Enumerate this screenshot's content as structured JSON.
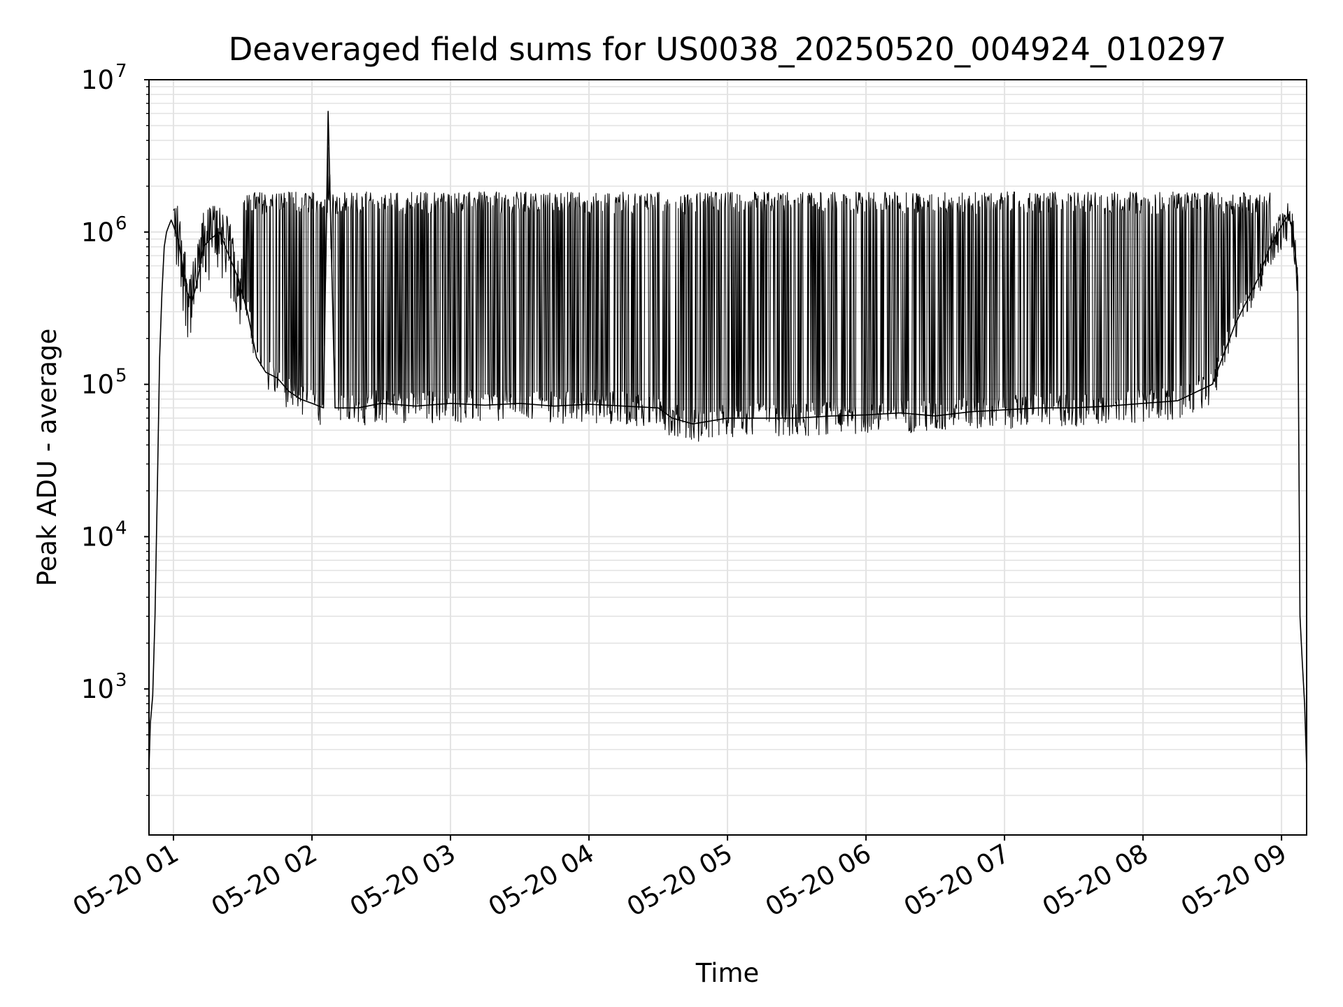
{
  "chart_data": {
    "type": "line",
    "title": "Deaveraged field sums for US0038_20250520_004924_010297",
    "xlabel": "Time",
    "ylabel": "Peak ADU - average",
    "y_scale": "log",
    "ylim": [
      110,
      10000000
    ],
    "xlim": [
      "2025-05-20 00:49:24",
      "2025-05-20 09:10:52"
    ],
    "x_tick_labels": [
      "05-20 01",
      "05-20 02",
      "05-20 03",
      "05-20 04",
      "05-20 05",
      "05-20 06",
      "05-20 07",
      "05-20 08",
      "05-20 09"
    ],
    "x_tick_values": [
      "2025-05-20 01:00",
      "2025-05-20 02:00",
      "2025-05-20 03:00",
      "2025-05-20 04:00",
      "2025-05-20 05:00",
      "2025-05-20 06:00",
      "2025-05-20 07:00",
      "2025-05-20 08:00",
      "2025-05-20 09:00"
    ],
    "y_tick_values": [
      1000,
      10000,
      100000,
      1000000,
      10000000
    ],
    "y_tick_labels": [
      {
        "base": "10",
        "exp": "3"
      },
      {
        "base": "10",
        "exp": "4"
      },
      {
        "base": "10",
        "exp": "5"
      },
      {
        "base": "10",
        "exp": "6"
      },
      {
        "base": "10",
        "exp": "7"
      }
    ],
    "grid": true,
    "line_color": "#000000",
    "grid_color": "#e3e3e3",
    "series": [
      {
        "x": [
          "2025-05-20 00:49:24",
          "2025-05-20 00:50:00",
          "2025-05-20 00:51:00",
          "2025-05-20 00:52:00",
          "2025-05-20 00:53:00",
          "2025-05-20 00:54:00",
          "2025-05-20 00:55:00",
          "2025-05-20 00:56:00",
          "2025-05-20 00:57:00",
          "2025-05-20 00:58:00",
          "2025-05-20 00:59:00",
          "2025-05-20 01:00:00",
          "2025-05-20 01:01:00",
          "2025-05-20 01:02:00",
          "2025-05-20 01:04:00",
          "2025-05-20 01:06:00",
          "2025-05-20 01:08:00",
          "2025-05-20 01:10:00",
          "2025-05-20 01:13:00",
          "2025-05-20 01:16:00",
          "2025-05-20 01:20:00",
          "2025-05-20 01:24:00",
          "2025-05-20 01:28:00",
          "2025-05-20 01:32:00",
          "2025-05-20 01:36:00",
          "2025-05-20 01:40:00",
          "2025-05-20 01:45:00",
          "2025-05-20 01:50:00",
          "2025-05-20 01:55:00",
          "2025-05-20 02:00:00",
          "2025-05-20 02:05:00",
          "2025-05-20 02:07:00",
          "2025-05-20 02:10:00",
          "2025-05-20 02:20:00",
          "2025-05-20 02:30:00",
          "2025-05-20 02:45:00",
          "2025-05-20 03:00:00",
          "2025-05-20 03:15:00",
          "2025-05-20 03:30:00",
          "2025-05-20 03:45:00",
          "2025-05-20 04:00:00",
          "2025-05-20 04:15:00",
          "2025-05-20 04:30:00",
          "2025-05-20 04:36:00",
          "2025-05-20 04:45:00",
          "2025-05-20 05:00:00",
          "2025-05-20 05:15:00",
          "2025-05-20 05:30:00",
          "2025-05-20 05:45:00",
          "2025-05-20 06:00:00",
          "2025-05-20 06:15:00",
          "2025-05-20 06:30:00",
          "2025-05-20 06:45:00",
          "2025-05-20 07:00:00",
          "2025-05-20 07:15:00",
          "2025-05-20 07:30:00",
          "2025-05-20 07:45:00",
          "2025-05-20 08:00:00",
          "2025-05-20 08:15:00",
          "2025-05-20 08:30:00",
          "2025-05-20 08:40:00",
          "2025-05-20 08:50:00",
          "2025-05-20 08:55:00",
          "2025-05-20 09:00:00",
          "2025-05-20 09:03:00",
          "2025-05-20 09:05:00",
          "2025-05-20 09:07:00",
          "2025-05-20 09:08:00",
          "2025-05-20 09:09:00",
          "2025-05-20 09:10:00",
          "2025-05-20 09:10:52"
        ],
        "y": [
          300,
          600,
          900,
          3000,
          20000,
          150000,
          400000,
          800000,
          1000000,
          1100000,
          1200000,
          1100000,
          1000000,
          900000,
          600000,
          400000,
          350000,
          450000,
          800000,
          900000,
          1000000,
          700000,
          500000,
          300000,
          150000,
          120000,
          110000,
          90000,
          80000,
          75000,
          70000,
          6200000,
          70000,
          70000,
          75000,
          72000,
          75000,
          73000,
          75000,
          72000,
          74000,
          72000,
          70000,
          60000,
          55000,
          60000,
          60000,
          60000,
          62000,
          63000,
          65000,
          62000,
          66000,
          68000,
          70000,
          70000,
          72000,
          75000,
          78000,
          100000,
          250000,
          500000,
          800000,
          1100000,
          1300000,
          1000000,
          500000,
          3000,
          1500,
          800,
          300
        ]
      }
    ]
  }
}
